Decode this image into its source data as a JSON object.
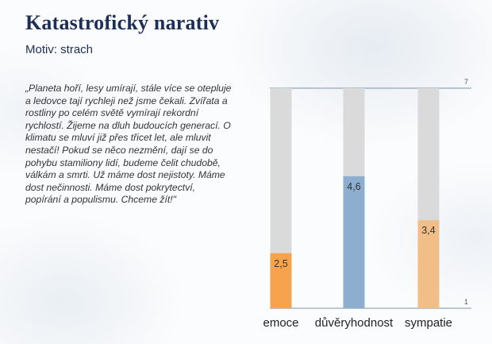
{
  "title": "Katastrofický narativ",
  "subtitle": "Motiv: strach",
  "quote": "„Planeta hoří, lesy umírají, stále více se otepluje a ledovce tají rychleji než jsme čekali. Zvířata a rostliny po celém světě vymírají rekordní rychlostí. Žijeme na dluh budoucích generací. O klimatu se mluví již přes třicet let, ale mluvit nestačí! Pokud se něco nezmění, dají se do pohybu stamiliony lidí, budeme čelit chudobě, válkám a smrti. Už máme dost nejistoty. Máme dost nečinnosti. Máme dost pokrytectví, popírání a populismu. Chceme žít!\"",
  "chart_data": {
    "type": "bar",
    "categories": [
      "emoce",
      "důvěryhodnost",
      "sympatie"
    ],
    "values": [
      2.5,
      4.6,
      3.4
    ],
    "value_labels": [
      "2,5",
      "4,6",
      "3,4"
    ],
    "ylim": [
      1,
      7
    ],
    "y_tick_labels": [
      "1",
      "7"
    ],
    "colors": [
      "#f7a34c",
      "#8eaed0",
      "#f2be87"
    ],
    "background_color": "#dadada",
    "grid": false
  }
}
